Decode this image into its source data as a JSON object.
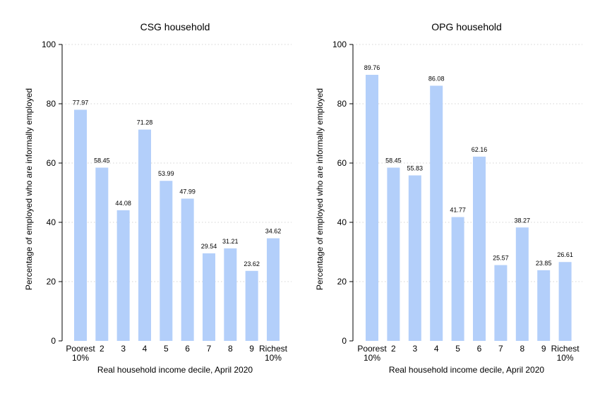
{
  "chart_data": [
    {
      "type": "bar",
      "title": "CSG household",
      "xlabel": "Real household income decile, April 2020",
      "ylabel": "Percentage of employed who are informally employed",
      "ylim": [
        0,
        100
      ],
      "yticks": [
        "0",
        "20",
        "40",
        "60",
        "80",
        "100"
      ],
      "categories": [
        [
          "Poorest",
          "10%"
        ],
        [
          "2"
        ],
        [
          "3"
        ],
        [
          "4"
        ],
        [
          "5"
        ],
        [
          "6"
        ],
        [
          "7"
        ],
        [
          "8"
        ],
        [
          "9"
        ],
        [
          "Richest",
          "10%"
        ]
      ],
      "values": [
        77.97,
        58.45,
        44.08,
        71.28,
        53.99,
        47.99,
        29.54,
        31.21,
        23.62,
        34.62
      ],
      "value_labels": [
        "77.97",
        "58.45",
        "44.08",
        "71.28",
        "53.99",
        "47.99",
        "29.54",
        "31.21",
        "23.62",
        "34.62"
      ],
      "grid": true,
      "bar_color": "#b3cffa"
    },
    {
      "type": "bar",
      "title": "OPG household",
      "xlabel": "Real household income decile, April 2020",
      "ylabel": "Percentage of employed who are informally employed",
      "ylim": [
        0,
        100
      ],
      "yticks": [
        "0",
        "20",
        "40",
        "60",
        "80",
        "100"
      ],
      "categories": [
        [
          "Poorest",
          "10%"
        ],
        [
          "2"
        ],
        [
          "3"
        ],
        [
          "4"
        ],
        [
          "5"
        ],
        [
          "6"
        ],
        [
          "7"
        ],
        [
          "8"
        ],
        [
          "9"
        ],
        [
          "Richest",
          "10%"
        ]
      ],
      "values": [
        89.76,
        58.45,
        55.83,
        86.08,
        41.77,
        62.16,
        25.57,
        38.27,
        23.85,
        26.61
      ],
      "value_labels": [
        "89.76",
        "58.45",
        "55.83",
        "86.08",
        "41.77",
        "62.16",
        "25.57",
        "38.27",
        "23.85",
        "26.61"
      ],
      "grid": true,
      "bar_color": "#b3cffa"
    }
  ]
}
